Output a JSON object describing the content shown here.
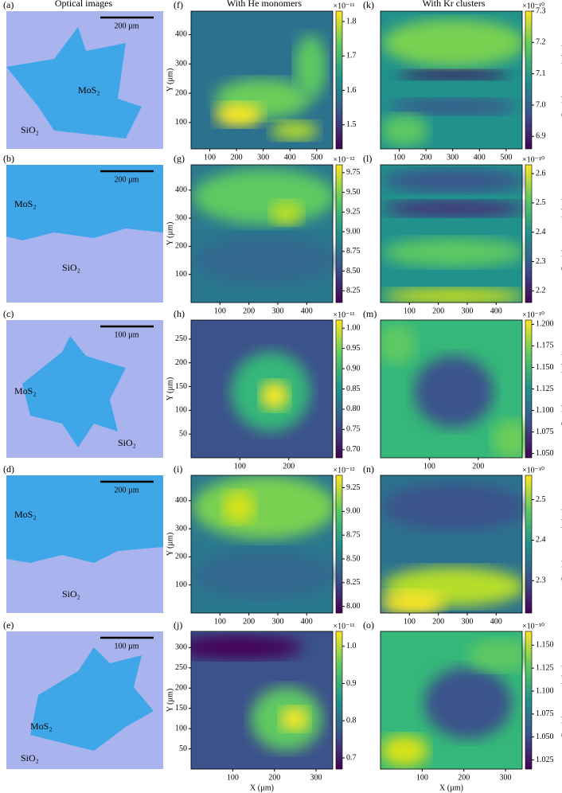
{
  "column_titles": [
    "Optical images",
    "With He monomers",
    "With Kr clusters"
  ],
  "optical": [
    {
      "label": "(a)",
      "scale": "200 µm",
      "mos2": "MoS₂",
      "sio2": "SiO₂"
    },
    {
      "label": "(b)",
      "scale": "200 µm",
      "mos2": "MoS₂",
      "sio2": "SiO₂"
    },
    {
      "label": "(c)",
      "scale": "100 µm",
      "mos2": "MoS₂",
      "sio2": "SiO₂"
    },
    {
      "label": "(d)",
      "scale": "200 µm",
      "mos2": "MoS₂",
      "sio2": "SiO₂"
    },
    {
      "label": "(e)",
      "scale": "100 µm",
      "mos2": "MoS₂",
      "sio2": "SiO₂"
    }
  ],
  "chart_data": [
    {
      "type": "heatmap",
      "panel": "(f)",
      "xlim": [
        30,
        560
      ],
      "ylim": [
        10,
        480
      ],
      "xticks": [
        100,
        200,
        300,
        400,
        500
      ],
      "yticks": [
        100,
        200,
        300,
        400
      ],
      "ylabel": "Y (µm)",
      "clim": [
        1.43,
        1.83
      ],
      "cticks": [
        1.5,
        1.6,
        1.7,
        1.8
      ],
      "cscale": "×10⁻¹¹"
    },
    {
      "type": "heatmap",
      "panel": "(g)",
      "xlim": [
        0,
        490
      ],
      "ylim": [
        0,
        490
      ],
      "xticks": [
        100,
        200,
        300,
        400
      ],
      "yticks": [
        100,
        200,
        300,
        400
      ],
      "ylabel": "Y (µm)",
      "clim": [
        8.1,
        9.85
      ],
      "cticks": [
        {
          "value": 8.25,
          "label": "8.25"
        },
        {
          "value": 8.5,
          "label": "8.50"
        },
        {
          "value": 8.75,
          "label": "8.75"
        },
        {
          "value": 9,
          "label": "9.00"
        },
        {
          "value": 9.25,
          "label": "9.25"
        },
        {
          "value": 9.5,
          "label": "9.50"
        },
        {
          "value": 9.75,
          "label": "9.75"
        }
      ],
      "cscale": "×10⁻¹²"
    },
    {
      "type": "heatmap",
      "panel": "(h)",
      "xlim": [
        0,
        290
      ],
      "ylim": [
        0,
        290
      ],
      "xticks": [
        100,
        200
      ],
      "yticks": [
        50,
        100,
        150,
        200,
        250
      ],
      "ylabel": "Y (µm)",
      "clim": [
        0.68,
        1.02
      ],
      "cticks": [
        {
          "value": 0.7,
          "label": "0.70"
        },
        {
          "value": 0.75,
          "label": "0.75"
        },
        {
          "value": 0.8,
          "label": "0.80"
        },
        {
          "value": 0.85,
          "label": "0.85"
        },
        {
          "value": 0.9,
          "label": "0.90"
        },
        {
          "value": 0.95,
          "label": "0.95"
        },
        {
          "value": 1,
          "label": "1.00"
        }
      ],
      "cscale": "×10⁻¹¹"
    },
    {
      "type": "heatmap",
      "panel": "(i)",
      "xlim": [
        0,
        490
      ],
      "ylim": [
        0,
        490
      ],
      "xticks": [
        100,
        200,
        300,
        400
      ],
      "yticks": [
        100,
        200,
        300,
        400
      ],
      "ylabel": "Y (µm)",
      "clim": [
        7.93,
        9.38
      ],
      "cticks": [
        {
          "value": 8,
          "label": "8.00"
        },
        {
          "value": 8.25,
          "label": "8.25"
        },
        {
          "value": 8.5,
          "label": "8.50"
        },
        {
          "value": 8.75,
          "label": "8.75"
        },
        {
          "value": 9,
          "label": "9.00"
        },
        {
          "value": 9.25,
          "label": "9.25"
        }
      ],
      "cscale": "×10⁻¹²"
    },
    {
      "type": "heatmap",
      "panel": "(j)",
      "xlim": [
        0,
        340
      ],
      "ylim": [
        0,
        340
      ],
      "xticks": [
        100,
        200,
        300
      ],
      "yticks": [
        50,
        100,
        150,
        200,
        250,
        300
      ],
      "ylabel": "Y (µm)",
      "xlabel": "X (µm)",
      "clim": [
        0.67,
        1.04
      ],
      "cticks": [
        0.7,
        0.8,
        0.9,
        {
          "value": 1,
          "label": "1.0"
        }
      ],
      "cscale": "×10⁻¹¹"
    },
    {
      "type": "heatmap",
      "panel": "(k)",
      "xlim": [
        30,
        560
      ],
      "ylim": [
        10,
        480
      ],
      "xticks": [
        100,
        200,
        300,
        400,
        500
      ],
      "clabel": "Partial pressure (mbar)",
      "clim": [
        6.86,
        7.3
      ],
      "cticks": [
        6.9,
        {
          "value": 7,
          "label": "7.0"
        },
        7.1,
        7.2,
        7.3
      ],
      "cscale": "×10⁻¹⁰"
    },
    {
      "type": "heatmap",
      "panel": "(l)",
      "xlim": [
        0,
        490
      ],
      "ylim": [
        0,
        490
      ],
      "xticks": [
        100,
        200,
        300,
        400
      ],
      "clabel": "Partial pressure (mbar)",
      "clim": [
        2.16,
        2.63
      ],
      "cticks": [
        2.2,
        2.3,
        2.4,
        2.5,
        2.6
      ],
      "cscale": "×10⁻¹⁰"
    },
    {
      "type": "heatmap",
      "panel": "(m)",
      "xlim": [
        0,
        290
      ],
      "ylim": [
        0,
        290
      ],
      "xticks": [
        100,
        200
      ],
      "clabel": "Partial pressure (mbar)",
      "clim": [
        1.045,
        1.205
      ],
      "cticks": [
        {
          "value": 1.05,
          "label": "1.050"
        },
        1.075,
        {
          "value": 1.1,
          "label": "1.100"
        },
        1.125,
        {
          "value": 1.15,
          "label": "1.150"
        },
        1.175,
        {
          "value": 1.2,
          "label": "1.200"
        }
      ],
      "cscale": "×10⁻¹⁰"
    },
    {
      "type": "heatmap",
      "panel": "(n)",
      "xlim": [
        0,
        490
      ],
      "ylim": [
        0,
        490
      ],
      "xticks": [
        100,
        200,
        300,
        400
      ],
      "clabel": "Partial pressure (mbar)",
      "clim": [
        2.22,
        2.56
      ],
      "cticks": [
        2.3,
        2.4,
        2.5
      ],
      "cscale": "×10⁻¹⁰"
    },
    {
      "type": "heatmap",
      "panel": "(o)",
      "xlim": [
        0,
        340
      ],
      "ylim": [
        0,
        340
      ],
      "xticks": [
        100,
        200,
        300
      ],
      "xlabel": "X (µm)",
      "clabel": "Partial pressure (mbar)",
      "clim": [
        1.015,
        1.165
      ],
      "cticks": [
        1.025,
        {
          "value": 1.05,
          "label": "1.050"
        },
        1.075,
        {
          "value": 1.1,
          "label": "1.100"
        },
        1.125,
        {
          "value": 1.15,
          "label": "1.150"
        }
      ],
      "cscale": "×10⁻¹⁰"
    }
  ]
}
